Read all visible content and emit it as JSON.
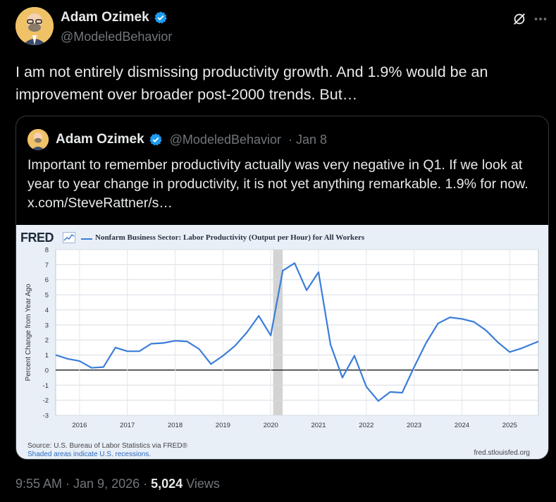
{
  "author": {
    "name": "Adam Ozimek",
    "handle": "@ModeledBehavior"
  },
  "tweet": {
    "text": "I am not entirely dismissing productivity growth. And 1.9% would be an improvement over broader post-2000 trends. But…"
  },
  "quote": {
    "name": "Adam Ozimek",
    "handle": "@ModeledBehavior",
    "date": "· Jan 8",
    "text": "Important to remember productivity actually was very negative in Q1. If we look at year to year change in productivity, it is not yet anything remarkable. 1.9% for now.",
    "link": "x.com/SteveRattner/s…"
  },
  "chart_card": {
    "logo": "FRED",
    "legend": "Nonfarm Business Sector: Labor Productivity (Output per Hour) for All Workers",
    "source": "Source: U.S. Bureau of Labor Statistics via FRED®",
    "note": "Shaded areas indicate U.S. recessions.",
    "url": "fred.stlouisfed.org"
  },
  "chart_data": {
    "type": "line",
    "title": "",
    "xlabel": "",
    "ylabel": "Percent Change from Year Ago",
    "ylim": [
      -3,
      8
    ],
    "xlim": [
      2015.5,
      2025.6
    ],
    "yticks": [
      -3,
      -2,
      -1,
      0,
      1,
      2,
      3,
      4,
      5,
      6,
      7,
      8
    ],
    "xticks": [
      2016,
      2017,
      2018,
      2019,
      2020,
      2021,
      2022,
      2023,
      2024,
      2025
    ],
    "recession": [
      2020.05,
      2020.25
    ],
    "grid": true,
    "legend_placement": "top-left",
    "colors": {
      "line": "#3b7dd8",
      "recession": "#c8c8c8",
      "zero": "#000000"
    },
    "series": [
      {
        "name": "Nonfarm Business Sector: Labor Productivity (Output per Hour) for All Workers",
        "x": [
          2015.5,
          2015.75,
          2016.0,
          2016.25,
          2016.5,
          2016.75,
          2017.0,
          2017.25,
          2017.5,
          2017.75,
          2018.0,
          2018.25,
          2018.5,
          2018.75,
          2019.0,
          2019.25,
          2019.5,
          2019.75,
          2020.0,
          2020.25,
          2020.5,
          2020.75,
          2021.0,
          2021.25,
          2021.5,
          2021.75,
          2022.0,
          2022.25,
          2022.5,
          2022.75,
          2023.0,
          2023.25,
          2023.5,
          2023.75,
          2024.0,
          2024.25,
          2024.5,
          2024.75,
          2025.0,
          2025.25,
          2025.6
        ],
        "y": [
          1.0,
          0.75,
          0.6,
          0.15,
          0.2,
          1.5,
          1.25,
          1.25,
          1.75,
          1.8,
          1.95,
          1.9,
          1.4,
          0.4,
          0.95,
          1.6,
          2.5,
          3.6,
          2.3,
          6.6,
          7.1,
          5.3,
          6.5,
          1.7,
          -0.5,
          0.95,
          -1.1,
          -2.05,
          -1.45,
          -1.5,
          0.2,
          1.8,
          3.1,
          3.5,
          3.4,
          3.2,
          2.65,
          1.85,
          1.2,
          1.45,
          1.9
        ]
      }
    ]
  },
  "footer": {
    "time": "9:55 AM · Jan 9, 2026 ·",
    "views_count": "5,024",
    "views_label": "Views"
  }
}
